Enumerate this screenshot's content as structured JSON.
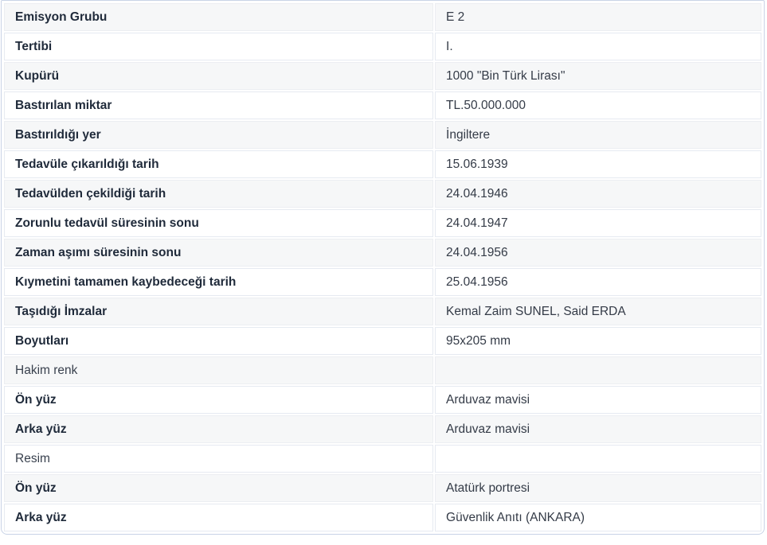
{
  "banknote_details": {
    "rows": [
      {
        "label": "Emisyon Grubu",
        "value": "E 2",
        "section": false
      },
      {
        "label": "Tertibi",
        "value": "I.",
        "section": false
      },
      {
        "label": "Kupürü",
        "value": "1000 \"Bin Türk Lirası\"",
        "section": false
      },
      {
        "label": "Bastırılan miktar",
        "value": "TL.50.000.000",
        "section": false
      },
      {
        "label": "Bastırıldığı yer",
        "value": "İngiltere",
        "section": false
      },
      {
        "label": "Tedavüle çıkarıldığı tarih",
        "value": "15.06.1939",
        "section": false
      },
      {
        "label": "Tedavülden çekildiği tarih",
        "value": "24.04.1946",
        "section": false
      },
      {
        "label": "Zorunlu tedavül süresinin sonu",
        "value": "24.04.1947",
        "section": false
      },
      {
        "label": "Zaman aşımı süresinin sonu",
        "value": "24.04.1956",
        "section": false
      },
      {
        "label": "Kıymetini tamamen kaybedeceği tarih",
        "value": "25.04.1956",
        "section": false
      },
      {
        "label": "Taşıdığı İmzalar",
        "value": "Kemal Zaim SUNEL, Said ERDA",
        "section": false
      },
      {
        "label": "Boyutları",
        "value": "95x205 mm",
        "section": false
      },
      {
        "label": "Hakim renk",
        "value": "",
        "section": true
      },
      {
        "label": "Ön yüz",
        "value": "Arduvaz mavisi",
        "section": false
      },
      {
        "label": "Arka yüz",
        "value": "Arduvaz mavisi",
        "section": false
      },
      {
        "label": "Resim",
        "value": "",
        "section": true
      },
      {
        "label": "Ön yüz",
        "value": "Atatürk portresi",
        "section": false
      },
      {
        "label": "Arka yüz",
        "value": "Güvenlik Anıtı (ANKARA)",
        "section": false
      }
    ],
    "colors": {
      "card_border": "#c9d3e6",
      "cell_border": "#e6eaf1",
      "striped_row_bg": "#f6f7f8",
      "label_text": "#1f2a3a",
      "value_text": "#343b47"
    }
  }
}
